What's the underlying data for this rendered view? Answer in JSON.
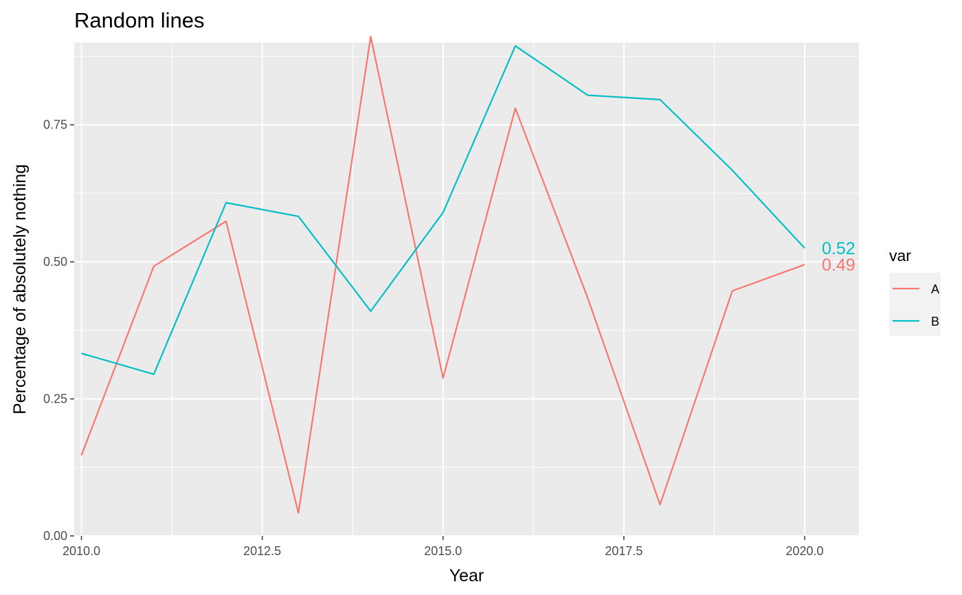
{
  "chart_data": {
    "type": "line",
    "title": "Random lines",
    "xlabel": "Year",
    "ylabel": "Percentage of absolutely nothing",
    "x": [
      2010,
      2011,
      2012,
      2013,
      2014,
      2015,
      2016,
      2017,
      2018,
      2019,
      2020
    ],
    "xlim": [
      2009.9,
      2020.75
    ],
    "ylim": [
      0,
      0.9
    ],
    "x_ticks": [
      2010.0,
      2012.5,
      2015.0,
      2017.5,
      2020.0
    ],
    "x_tick_labels": [
      "2010.0",
      "2012.5",
      "2015.0",
      "2017.5",
      "2020.0"
    ],
    "y_ticks": [
      0,
      0.25,
      0.5,
      0.75
    ],
    "y_tick_labels": [
      "0.00",
      "0.25",
      "0.50",
      "0.75"
    ],
    "grid": true,
    "legend": {
      "title": "var",
      "position": "right"
    },
    "series": [
      {
        "name": "A",
        "color": "#f8766d",
        "end_label": "0.49",
        "values": [
          0.147,
          0.492,
          0.574,
          0.042,
          0.911,
          0.288,
          0.78,
          0.434,
          0.057,
          0.447,
          0.495
        ]
      },
      {
        "name": "B",
        "color": "#00bfc4",
        "end_label": "0.52",
        "values": [
          0.333,
          0.295,
          0.608,
          0.583,
          0.41,
          0.59,
          0.894,
          0.804,
          0.796,
          0.667,
          0.525
        ]
      }
    ]
  }
}
